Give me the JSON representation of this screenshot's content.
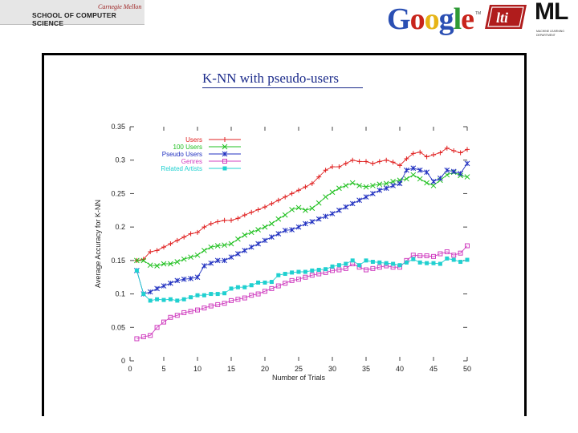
{
  "header": {
    "cmu_name": "Carnegie Mellon",
    "school": "SCHOOL OF COMPUTER SCIENCE",
    "google_letters": [
      {
        "ch": "G",
        "color": "#2a4fb3"
      },
      {
        "ch": "o",
        "color": "#c8241b"
      },
      {
        "ch": "o",
        "color": "#e6b416"
      },
      {
        "ch": "g",
        "color": "#2a4fb3"
      },
      {
        "ch": "l",
        "color": "#2e9a35"
      },
      {
        "ch": "e",
        "color": "#c8241b"
      }
    ],
    "google_tm": "TM",
    "lti_text": "lti",
    "ml_text": "ML",
    "ml_subtitle": "MACHINE LEARNING DEPARTMENT"
  },
  "slide_title": "K-NN with pseudo-users",
  "chart_data": {
    "type": "line",
    "title": "",
    "xlabel": "Number of Trials",
    "ylabel": "Average Accuracy for K-NN",
    "xlim": [
      0,
      50
    ],
    "ylim": [
      0,
      0.35
    ],
    "xticks": [
      0,
      5,
      10,
      15,
      20,
      25,
      30,
      35,
      40,
      45,
      50
    ],
    "yticks": [
      0,
      0.05,
      0.1,
      0.15,
      0.2,
      0.25,
      0.3,
      0.35
    ],
    "ytick_labels": [
      "0",
      "0.05",
      "0.1",
      "0.15",
      "0.2",
      "0.25",
      "0.3",
      "0.35"
    ],
    "legend_position": "top-left",
    "x": [
      1,
      2,
      3,
      4,
      5,
      6,
      7,
      8,
      9,
      10,
      11,
      12,
      13,
      14,
      15,
      16,
      17,
      18,
      19,
      20,
      21,
      22,
      23,
      24,
      25,
      26,
      27,
      28,
      29,
      30,
      31,
      32,
      33,
      34,
      35,
      36,
      37,
      38,
      39,
      40,
      41,
      42,
      43,
      44,
      45,
      46,
      47,
      48,
      49,
      50
    ],
    "series": [
      {
        "name": "Users",
        "color": "#e02020",
        "marker": "plus",
        "values": [
          0.15,
          0.152,
          0.163,
          0.165,
          0.17,
          0.175,
          0.18,
          0.185,
          0.19,
          0.192,
          0.2,
          0.205,
          0.208,
          0.21,
          0.21,
          0.213,
          0.218,
          0.222,
          0.226,
          0.23,
          0.235,
          0.24,
          0.245,
          0.25,
          0.255,
          0.26,
          0.265,
          0.275,
          0.285,
          0.29,
          0.29,
          0.295,
          0.3,
          0.298,
          0.298,
          0.295,
          0.298,
          0.3,
          0.297,
          0.292,
          0.302,
          0.31,
          0.312,
          0.305,
          0.308,
          0.311,
          0.318,
          0.314,
          0.311,
          0.316
        ]
      },
      {
        "name": "100 Users",
        "color": "#20c020",
        "marker": "x",
        "values": [
          0.15,
          0.15,
          0.143,
          0.142,
          0.145,
          0.145,
          0.148,
          0.152,
          0.155,
          0.158,
          0.165,
          0.17,
          0.172,
          0.173,
          0.175,
          0.182,
          0.188,
          0.192,
          0.196,
          0.2,
          0.205,
          0.212,
          0.218,
          0.226,
          0.229,
          0.225,
          0.228,
          0.236,
          0.245,
          0.252,
          0.258,
          0.262,
          0.266,
          0.262,
          0.26,
          0.262,
          0.264,
          0.265,
          0.268,
          0.27,
          0.272,
          0.278,
          0.272,
          0.266,
          0.262,
          0.27,
          0.278,
          0.282,
          0.277,
          0.275
        ]
      },
      {
        "name": "Pseudo Users",
        "color": "#2030c0",
        "marker": "asterisk",
        "values": [
          0.135,
          0.1,
          0.103,
          0.108,
          0.112,
          0.116,
          0.12,
          0.122,
          0.123,
          0.125,
          0.142,
          0.146,
          0.15,
          0.15,
          0.155,
          0.16,
          0.165,
          0.17,
          0.175,
          0.18,
          0.185,
          0.19,
          0.195,
          0.196,
          0.2,
          0.205,
          0.208,
          0.212,
          0.216,
          0.22,
          0.225,
          0.23,
          0.235,
          0.24,
          0.245,
          0.25,
          0.255,
          0.258,
          0.262,
          0.265,
          0.285,
          0.288,
          0.285,
          0.282,
          0.268,
          0.273,
          0.285,
          0.283,
          0.28,
          0.295
        ]
      },
      {
        "name": "Genres",
        "color": "#d040c0",
        "marker": "square-open",
        "values": [
          0.033,
          0.036,
          0.038,
          0.05,
          0.058,
          0.065,
          0.068,
          0.072,
          0.074,
          0.076,
          0.079,
          0.082,
          0.084,
          0.086,
          0.09,
          0.092,
          0.094,
          0.098,
          0.1,
          0.104,
          0.108,
          0.112,
          0.116,
          0.12,
          0.122,
          0.125,
          0.128,
          0.13,
          0.132,
          0.135,
          0.136,
          0.138,
          0.145,
          0.14,
          0.136,
          0.138,
          0.14,
          0.142,
          0.14,
          0.14,
          0.15,
          0.158,
          0.157,
          0.157,
          0.156,
          0.16,
          0.163,
          0.158,
          0.161,
          0.172
        ]
      },
      {
        "name": "Related Artists",
        "color": "#20d0d0",
        "marker": "square-filled",
        "values": [
          0.135,
          0.1,
          0.09,
          0.092,
          0.091,
          0.092,
          0.09,
          0.092,
          0.095,
          0.098,
          0.098,
          0.1,
          0.1,
          0.101,
          0.108,
          0.11,
          0.11,
          0.113,
          0.117,
          0.117,
          0.118,
          0.128,
          0.13,
          0.132,
          0.133,
          0.133,
          0.135,
          0.136,
          0.137,
          0.141,
          0.143,
          0.145,
          0.15,
          0.143,
          0.15,
          0.148,
          0.147,
          0.146,
          0.145,
          0.143,
          0.147,
          0.152,
          0.147,
          0.146,
          0.146,
          0.145,
          0.153,
          0.151,
          0.148,
          0.151
        ]
      }
    ]
  }
}
